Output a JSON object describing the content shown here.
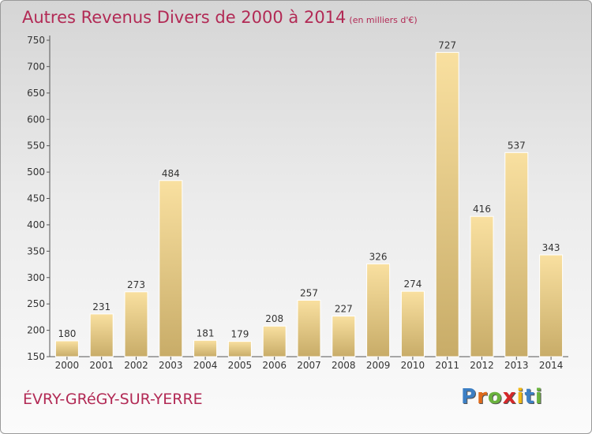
{
  "title": "Autres Revenus Divers de 2000 à 2014",
  "unit_label": "(en milliers d'€)",
  "place": "ÉVRY-GRéGY-SUR-YERRE",
  "logo": {
    "letters": [
      "P",
      "r",
      "o",
      "x",
      "i",
      "t",
      "i"
    ],
    "colors": [
      "#3c7fc4",
      "#e06a1a",
      "#6ab23e",
      "#d4282a",
      "#f0b816",
      "#3c7fc4",
      "#6ab23e"
    ]
  },
  "colors": {
    "bar_top": "#f9e0a0",
    "bar_bottom": "#c8ac68",
    "text": "#b22a55"
  },
  "chart_data": {
    "type": "bar",
    "categories": [
      "2000",
      "2001",
      "2002",
      "2003",
      "2004",
      "2005",
      "2006",
      "2007",
      "2008",
      "2009",
      "2010",
      "2011",
      "2012",
      "2013",
      "2014"
    ],
    "values": [
      180,
      231,
      273,
      484,
      181,
      179,
      208,
      257,
      227,
      326,
      274,
      727,
      416,
      537,
      343
    ],
    "yticks": [
      150,
      200,
      250,
      300,
      350,
      400,
      450,
      500,
      550,
      600,
      650,
      700,
      750
    ],
    "ylim": [
      150,
      750
    ],
    "grid": false,
    "data_labels": true
  }
}
